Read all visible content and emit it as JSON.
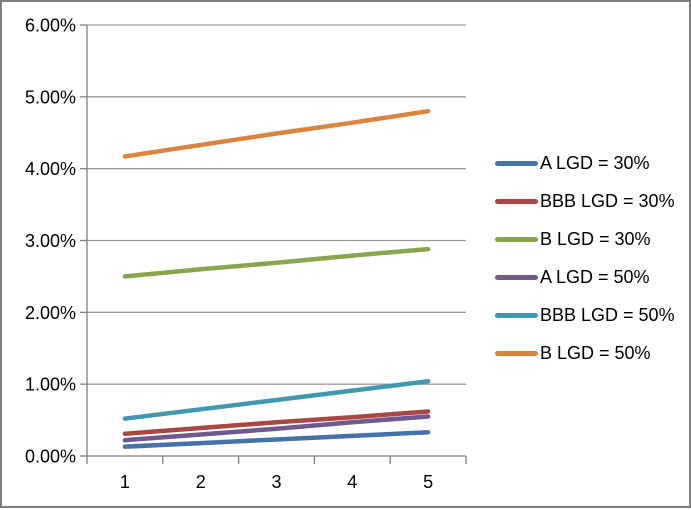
{
  "chart_data": {
    "type": "line",
    "title": "",
    "xlabel": "",
    "ylabel": "",
    "x": [
      1,
      2,
      3,
      4,
      5
    ],
    "x_tick_labels": [
      "1",
      "2",
      "3",
      "4",
      "5"
    ],
    "y_tick_labels": [
      "0.00%",
      "1.00%",
      "2.00%",
      "3.00%",
      "4.00%",
      "5.00%",
      "6.00%"
    ],
    "ylim": [
      0,
      6
    ],
    "y_unit": "percent",
    "grid": true,
    "legend_position": "right",
    "series": [
      {
        "name": "A LGD = 30%",
        "color": "#4572A7",
        "values": [
          0.13,
          0.18,
          0.23,
          0.28,
          0.33
        ]
      },
      {
        "name": "BBB LGD = 30%",
        "color": "#AA4643",
        "values": [
          0.31,
          0.39,
          0.47,
          0.54,
          0.62
        ]
      },
      {
        "name": "B LGD = 30%",
        "color": "#89A54E",
        "values": [
          2.5,
          2.6,
          2.69,
          2.79,
          2.88
        ]
      },
      {
        "name": "A LGD = 50%",
        "color": "#71588F",
        "values": [
          0.22,
          0.3,
          0.38,
          0.47,
          0.55
        ]
      },
      {
        "name": "BBB LGD = 50%",
        "color": "#4198AF",
        "values": [
          0.52,
          0.65,
          0.78,
          0.91,
          1.04
        ]
      },
      {
        "name": "B LGD = 50%",
        "color": "#DB843D",
        "values": [
          4.17,
          4.33,
          4.49,
          4.64,
          4.8
        ]
      }
    ]
  },
  "style_colors": {
    "background": "#FFFFFF",
    "frame_border": "#7F7F7F",
    "gridline": "#9C9C9C",
    "axis": "#808080",
    "tick_label_text": "#000000",
    "legend_text": "#000000"
  }
}
